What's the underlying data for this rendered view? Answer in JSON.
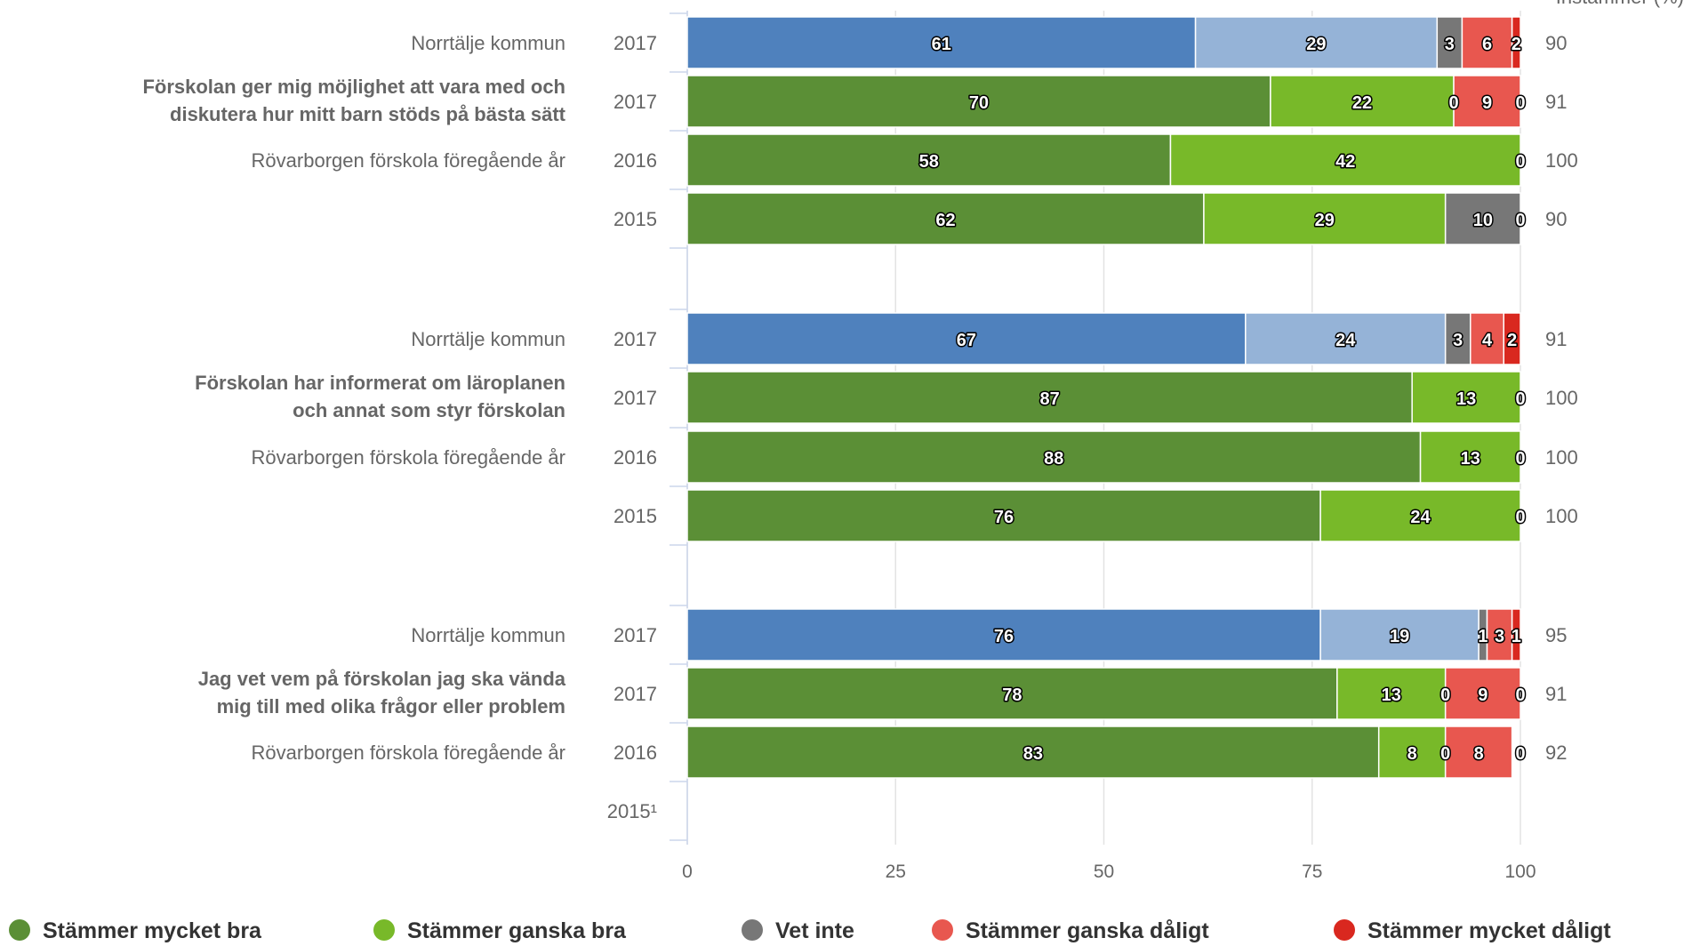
{
  "chart_data": {
    "type": "bar",
    "orientation": "horizontal",
    "stacked": true,
    "xlim": [
      0,
      100
    ],
    "x_ticks": [
      "0",
      "25",
      "50",
      "75",
      "100"
    ],
    "right_column_header": "Instämmer (%)",
    "grid": true,
    "legend_position": "bottom",
    "series": [
      {
        "name": "Stämmer mycket bra",
        "color": "#5b8f36",
        "alt_color": "#4f81bd"
      },
      {
        "name": "Stämmer ganska bra",
        "color": "#78b929",
        "alt_color": "#95b3d7"
      },
      {
        "name": "Vet inte",
        "color": "#777777"
      },
      {
        "name": "Stämmer ganska dåligt",
        "color": "#e8574f"
      },
      {
        "name": "Stämmer mycket dåligt",
        "color": "#d9281f"
      }
    ],
    "groups": [
      {
        "question": [
          "Förskolan ger mig möjlighet att vara med och",
          "diskutera hur mitt barn stöds på bästa sätt"
        ],
        "rows": [
          {
            "label": "Norrtälje kommun",
            "year": "2017",
            "values": [
              61,
              29,
              3,
              6,
              2
            ],
            "agree": "90",
            "comparison": true
          },
          {
            "label": "",
            "year": "2017",
            "values": [
              70,
              22,
              0,
              9,
              0
            ],
            "agree": "91"
          },
          {
            "label": "Rövarborgen förskola föregående år",
            "year": "2016",
            "values": [
              58,
              42,
              0,
              0,
              0
            ],
            "agree": "100"
          },
          {
            "label": "",
            "year": "2015",
            "values": [
              62,
              29,
              10,
              0,
              0
            ],
            "agree": "90"
          }
        ]
      },
      {
        "question": [
          "Förskolan har informerat om läroplanen",
          "och annat som styr förskolan"
        ],
        "rows": [
          {
            "label": "Norrtälje kommun",
            "year": "2017",
            "values": [
              67,
              24,
              3,
              4,
              2
            ],
            "agree": "91",
            "comparison": true
          },
          {
            "label": "",
            "year": "2017",
            "values": [
              87,
              13,
              0,
              0,
              0
            ],
            "agree": "100"
          },
          {
            "label": "Rövarborgen förskola föregående år",
            "year": "2016",
            "values": [
              88,
              13,
              0,
              0,
              0
            ],
            "agree": "100"
          },
          {
            "label": "",
            "year": "2015",
            "values": [
              76,
              24,
              0,
              0,
              0
            ],
            "agree": "100"
          }
        ]
      },
      {
        "question": [
          "Jag vet vem på förskolan jag ska vända",
          "mig till med olika frågor eller problem"
        ],
        "rows": [
          {
            "label": "Norrtälje kommun",
            "year": "2017",
            "values": [
              76,
              19,
              1,
              3,
              1
            ],
            "agree": "95",
            "comparison": true
          },
          {
            "label": "",
            "year": "2017",
            "values": [
              78,
              13,
              0,
              9,
              0
            ],
            "agree": "91"
          },
          {
            "label": "Rövarborgen förskola föregående år",
            "year": "2016",
            "values": [
              83,
              8,
              0,
              8,
              0
            ],
            "agree": "92"
          },
          {
            "label": "",
            "year": "2015¹",
            "values": null,
            "agree": ""
          }
        ]
      }
    ]
  }
}
